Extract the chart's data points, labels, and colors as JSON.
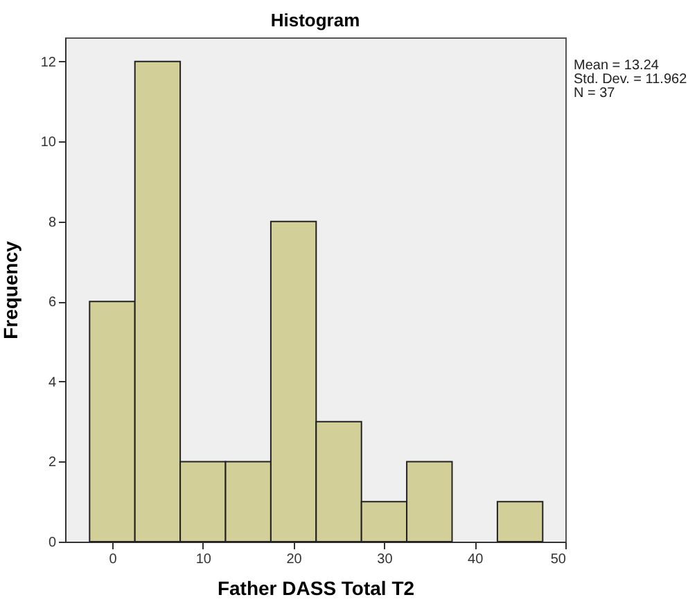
{
  "chart_data": {
    "type": "histogram",
    "title": "Histogram",
    "xlabel": "Father DASS Total T2",
    "ylabel": "Frequency",
    "bins": [
      -2.5,
      2.5,
      7.5,
      12.5,
      17.5,
      22.5,
      27.5,
      32.5,
      37.5,
      42.5,
      47.5
    ],
    "values": [
      6,
      12,
      2,
      2,
      8,
      3,
      1,
      2,
      0,
      1
    ],
    "color": "#d3cf98",
    "xlim": [
      -5.2,
      50
    ],
    "xticks": [
      0,
      10,
      20,
      30,
      40,
      50
    ],
    "ylim": [
      0,
      12.6
    ],
    "yticks": [
      0,
      2,
      4,
      6,
      8,
      10,
      12
    ],
    "grid": false,
    "annotations": [
      "Mean = 13.24",
      "Std. Dev. = 11.962",
      "N = 37"
    ]
  }
}
